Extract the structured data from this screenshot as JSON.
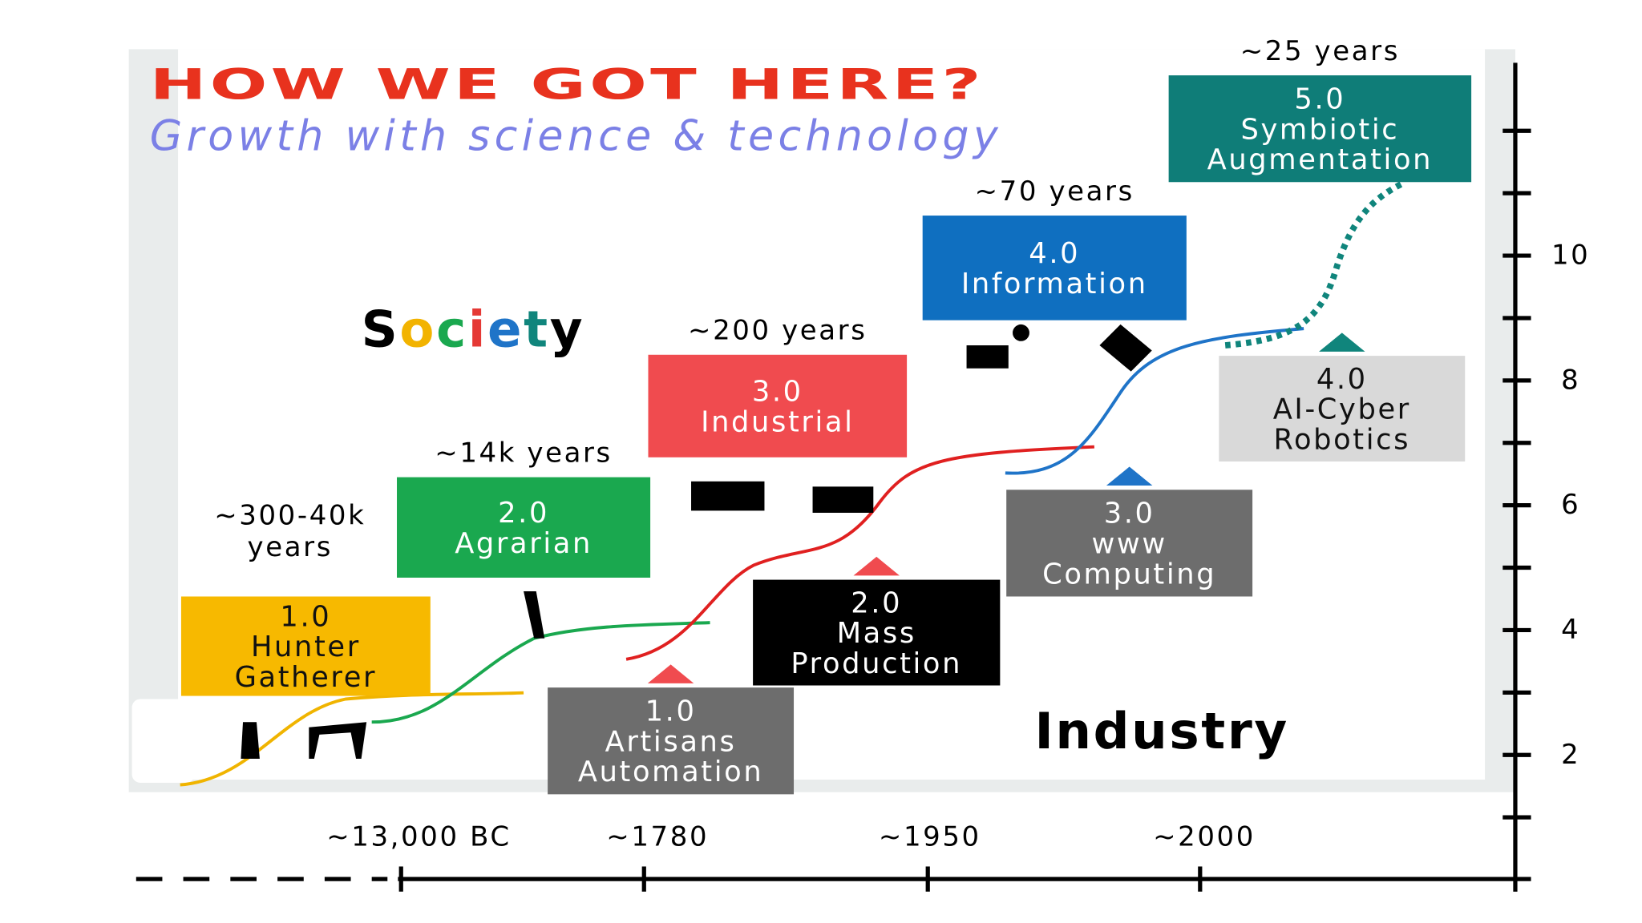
{
  "header": {
    "title": "HOW WE GOT HERE?",
    "subtitle": "Growth with science & technology"
  },
  "society": {
    "label": "Society",
    "stages": [
      {
        "duration": [
          "~300-40k",
          "years"
        ],
        "lines": [
          "1.0",
          "Hunter",
          "Gatherer"
        ]
      },
      {
        "duration": [
          "~14k years"
        ],
        "lines": [
          "2.0",
          "Agrarian"
        ]
      },
      {
        "duration": [
          "~200 years"
        ],
        "lines": [
          "3.0",
          "Industrial"
        ]
      },
      {
        "duration": [
          "~70 years"
        ],
        "lines": [
          "4.0",
          "Information"
        ]
      },
      {
        "duration": [
          "~25 years"
        ],
        "lines": [
          "5.0",
          "Symbiotic",
          "Augmentation"
        ]
      }
    ]
  },
  "industry": {
    "label": "Industry",
    "stages": [
      {
        "lines": [
          "1.0",
          "Artisans",
          "Automation"
        ]
      },
      {
        "lines": [
          "2.0",
          "Mass",
          "Production"
        ]
      },
      {
        "lines": [
          "3.0",
          "www",
          "Computing"
        ]
      },
      {
        "lines": [
          "4.0",
          "AI-Cyber",
          "Robotics"
        ]
      }
    ]
  },
  "axis": {
    "y_labels": [
      "10",
      "8",
      "6",
      "4",
      "2"
    ],
    "x_labels": [
      "~13,000 BC",
      "~1780",
      "~1950",
      "~2000"
    ]
  }
}
